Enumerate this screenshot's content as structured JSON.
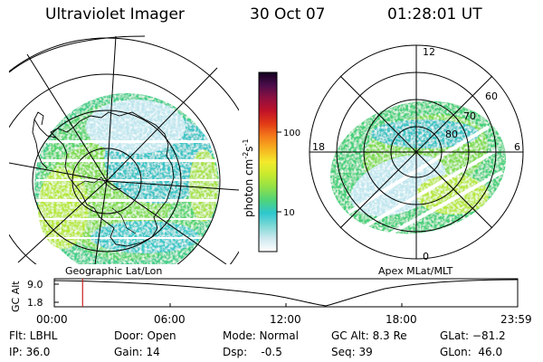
{
  "header": {
    "instrument": "Ultraviolet Imager",
    "date": "30 Oct 07",
    "time": "01:28:01 UT"
  },
  "colors": {
    "bg": "#ffffff",
    "line": "#000000",
    "marker": "#cc2222"
  },
  "colorbar": {
    "label": "photon cm",
    "label_sup1": "-2",
    "label_mid": "s",
    "label_sup2": "-1",
    "ticks": [
      "100",
      "10"
    ],
    "stops": [
      "#ffffff",
      "#cfe9f0",
      "#7fd9d6",
      "#2ec7cf",
      "#4fd37a",
      "#8fe04a",
      "#c7ea2e",
      "#f3ea2c",
      "#f7b320",
      "#f47c1a",
      "#e23a16",
      "#c01229",
      "#8e1040",
      "#4a0d4a",
      "#12001f"
    ]
  },
  "left_map": {
    "caption": "Geographic Lat/Lon"
  },
  "right_map": {
    "caption": "Apex MLat/MLT",
    "mlt_labels": [
      "12",
      "18",
      "6",
      "0"
    ],
    "lat_labels": [
      "60",
      "70",
      "80"
    ]
  },
  "timeline": {
    "axis_label": "GC Alt",
    "y_ticks": [
      "9.0",
      "1.8"
    ],
    "x_ticks": [
      "00:00",
      "06:00",
      "12:00",
      "18:00",
      "23:59"
    ],
    "marker_fraction": 0.0611
  },
  "info": {
    "filter": "Flt: LBHL",
    "ip": "IP: 36.0",
    "door": "Door: Open",
    "gain": "Gain: 14",
    "mode": "Mode: Normal",
    "dsp": "Dsp:    -0.5",
    "gcalt": "GC Alt: 8.3 Re",
    "seq": "Seq: 39",
    "glat": "GLat: −81.2",
    "glon": "GLon:  46.0"
  }
}
